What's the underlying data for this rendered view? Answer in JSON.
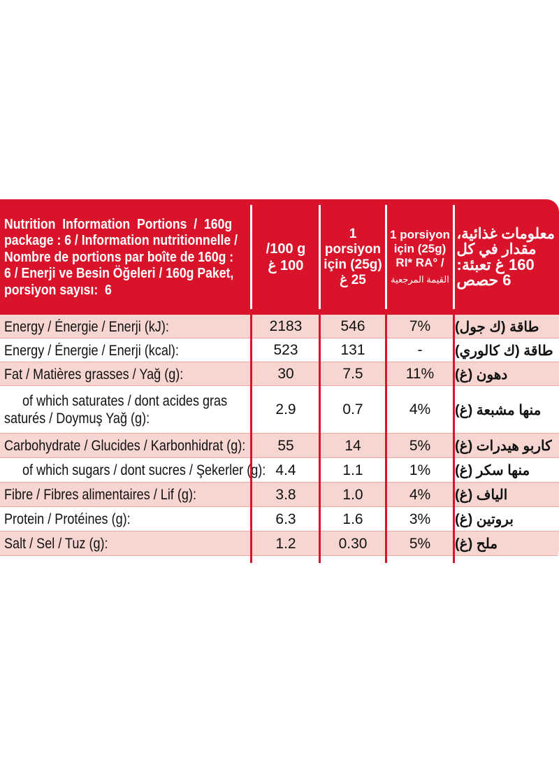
{
  "header": {
    "title_lines": [
      "Nutrition  Information  Portions  /  160g",
      "package : 6 / Information nutritionnelle /",
      "Nombre de portions par boîte de 160g :",
      "6 / Enerji ve Besin Öğeleri / 160g Paket,",
      "porsiyon sayısı:  6"
    ],
    "col_100g": [
      "/100 g",
      "100 غ"
    ],
    "col_portion": [
      "1 porsiyon",
      "için (25g)",
      "25 غ"
    ],
    "col_ri": [
      "1 porsiyon",
      "için (25g)",
      "RI* RA° /",
      "القيمة المرجعية"
    ],
    "col_arabic": [
      "معلومات غذائية،",
      "مقدار في كل",
      "160 غ تعبئة:",
      "6 حصص"
    ]
  },
  "rows": [
    {
      "label": [
        "Energy / Énergie / Enerji (kJ):"
      ],
      "per100": "2183",
      "portion": "546",
      "ri": "7%",
      "arabic": "طاقة (ك جول)"
    },
    {
      "label": [
        "Energy / Énergie / Enerji (kcal):"
      ],
      "per100": "523",
      "portion": "131",
      "ri": "-",
      "arabic": "طاقة (ك كالوري)"
    },
    {
      "label": [
        "Fat / Matières grasses / Yağ (g):"
      ],
      "per100": "30",
      "portion": "7.5",
      "ri": "11%",
      "arabic": "دهون (غ)"
    },
    {
      "label": [
        "of which saturates / dont acides gras",
        "saturés / Doymuş Yağ (g):"
      ],
      "per100": "2.9",
      "portion": "0.7",
      "ri": "4%",
      "arabic": "منها مشبعة (غ)"
    },
    {
      "label": [
        "Carbohydrate / Glucides / Karbonhidrat (g):"
      ],
      "per100": "55",
      "portion": "14",
      "ri": "5%",
      "arabic": "كاربو هيدرات (غ)"
    },
    {
      "label": [
        "of which sugars / dont sucres / Şekerler (g):"
      ],
      "per100": "4.4",
      "portion": "1.1",
      "ri": "1%",
      "arabic": "منها سكر (غ)"
    },
    {
      "label": [
        "Fibre / Fibres alimentaires / Lif (g):"
      ],
      "per100": "3.8",
      "portion": "1.0",
      "ri": "4%",
      "arabic": "الياف (غ)"
    },
    {
      "label": [
        "Protein / Protéines (g):"
      ],
      "per100": "6.3",
      "portion": "1.6",
      "ri": "3%",
      "arabic": "بروتين (غ)"
    },
    {
      "label": [
        "Salt / Sel / Tuz (g):"
      ],
      "per100": "1.2",
      "portion": "0.30",
      "ri": "5%",
      "arabic": "ملح (غ)"
    }
  ],
  "colors": {
    "brand_red": "#d8132a",
    "row_shade": "#f7d6d2"
  }
}
